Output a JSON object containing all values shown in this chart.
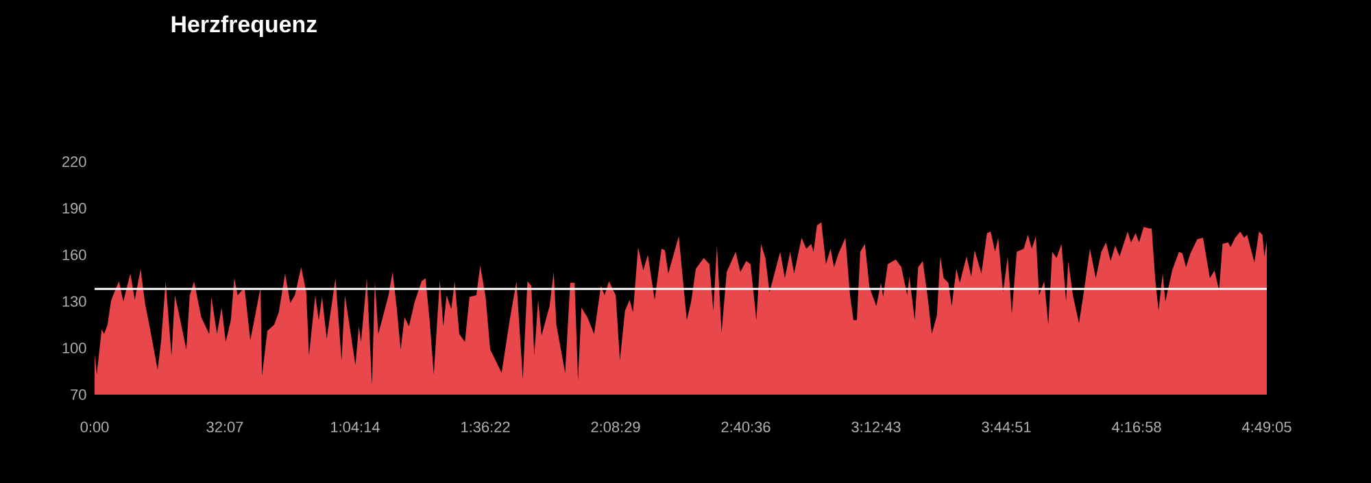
{
  "chart_data": {
    "type": "area",
    "title": "Herzfrequenz",
    "x": [
      0,
      0.54,
      1.74,
      2.34,
      3.18,
      4.02,
      4.56,
      6.0,
      7.08,
      8.82,
      9.9,
      11.34,
      12.48,
      13.56,
      15.54,
      16.38,
      17.52,
      18.96,
      19.8,
      20.64,
      22.62,
      23.46,
      24.54,
      26.28,
      28.26,
      28.8,
      30.18,
      31.32,
      32.34,
      33.6,
      34.44,
      35.28,
      36.96,
      38.4,
      40.92,
      41.28,
      42.6,
      44.28,
      45.42,
      46.98,
      48.24,
      49.38,
      50.94,
      52.2,
      52.86,
      54.42,
      55.26,
      56.1,
      57.24,
      59.4,
      60.9,
      61.74,
      64.32,
      65.16,
      65.7,
      67.14,
      68.4,
      69.12,
      69.96,
      72.48,
      73.5,
      74.46,
      75.48,
      76.44,
      77.52,
      78.96,
      80.64,
      81.6,
      82.62,
      83.64,
      85.14,
      85.98,
      86.82,
      87.96,
      88.8,
      89.94,
      91.32,
      92.46,
      94.14,
      95.1,
      96.42,
      97.56,
      98.7,
      100.38,
      102.36,
      104.04,
      105.6,
      106.74,
      107.7,
      108.42,
      109.38,
      110.22,
      112.2,
      113.22,
      113.88,
      116.04,
      117.3,
      118.38,
      119.22,
      120.06,
      121.5,
      123.18,
      124.86,
      125.76,
      126.84,
      128.52,
      129.54,
      130.8,
      131.94,
      132.78,
      134.04,
      135.3,
      136.44,
      138.12,
      139.8,
      140.64,
      141.48,
      144.06,
      146.04,
      147.12,
      148.26,
      150.24,
      151.62,
      152.58,
      153.48,
      154.62,
      155.88,
      158.1,
      159.24,
      160.68,
      161.76,
      163.2,
      164.34,
      165.42,
      166.44,
      169.08,
      170.22,
      171.54,
      172.5,
      174.36,
      175.5,
      176.7,
      177.3,
      178.14,
      179.22,
      180.36,
      181.5,
      182.34,
      183.48,
      185.16,
      186.3,
      187.14,
      187.98,
      188.82,
      189.96,
      191.1,
      192.78,
      193.92,
      194.46,
      195.6,
      197.58,
      198.96,
      200.4,
      200.94,
      202.26,
      203.1,
      204.24,
      205.44,
      206.46,
      207.72,
      208.56,
      209.4,
      210.54,
      211.38,
      212.52,
      213.36,
      215.04,
      216.18,
      217.02,
      218.7,
      220.08,
      220.98,
      222.06,
      222.84,
      224.04,
      225.18,
      226.2,
      227.4,
      229.14,
      230.16,
      231.12,
      232.14,
      232.92,
      234.18,
      235.2,
      236.16,
      237.24,
      238.44,
      239.58,
      240.12,
      241.26,
      242.76,
      243.78,
      245.46,
      246.9,
      248.28,
      249.42,
      250.56,
      251.7,
      252.78,
      254.76,
      255.6,
      256.74,
      257.58,
      258.72,
      260.1,
      260.7,
      261.54,
      262.38,
      263.4,
      264.06,
      265.74,
      267.42,
      268.26,
      269.16,
      270.24,
      271.92,
      273.36,
      275.04,
      276.18,
      277.32,
      278.16,
      279.54,
      280.14,
      281.28,
      282.54,
      283.5,
      284.22,
      286.02,
      287.16,
      288.0,
      288.48,
      289.08
    ],
    "series": [
      {
        "color": "#e8474b",
        "values": [
          96,
          83,
          112,
          109,
          115,
          130,
          134,
          143,
          130,
          148,
          131,
          151,
          128,
          114,
          86,
          104,
          143,
          95,
          134,
          124,
          99,
          134,
          143,
          120,
          109,
          133,
          109,
          126,
          104,
          118,
          145,
          134,
          139,
          105,
          139,
          82,
          111,
          115,
          123,
          148,
          129,
          134,
          152,
          136,
          95,
          134,
          118,
          133,
          106,
          145,
          92,
          134,
          89,
          114,
          104,
          145,
          76,
          143,
          109,
          134,
          149,
          127,
          99,
          120,
          114,
          130,
          143,
          145,
          118,
          83,
          144,
          114,
          134,
          125,
          143,
          109,
          104,
          133,
          134,
          153,
          133,
          99,
          93,
          84,
          118,
          143,
          80,
          143,
          140,
          95,
          131,
          108,
          127,
          149,
          115,
          84,
          142,
          142,
          79,
          126,
          120,
          109,
          140,
          134,
          143,
          134,
          92,
          124,
          131,
          123,
          165,
          150,
          160,
          131,
          164,
          163,
          148,
          172,
          118,
          130,
          151,
          158,
          154,
          124,
          166,
          110,
          149,
          162,
          149,
          156,
          154,
          118,
          167,
          158,
          136,
          162,
          145,
          162,
          148,
          171,
          164,
          167,
          162,
          179,
          181,
          154,
          164,
          152,
          161,
          171,
          134,
          118,
          118,
          162,
          167,
          139,
          127,
          142,
          133,
          154,
          157,
          152,
          134,
          146,
          118,
          152,
          156,
          133,
          109,
          121,
          159,
          145,
          142,
          127,
          151,
          142,
          159,
          146,
          163,
          148,
          174,
          175,
          162,
          171,
          136,
          159,
          122,
          162,
          164,
          173,
          164,
          172,
          134,
          143,
          115,
          162,
          158,
          167,
          130,
          156,
          134,
          116,
          133,
          164,
          145,
          162,
          168,
          156,
          166,
          159,
          175,
          168,
          174,
          168,
          178,
          177,
          177,
          145,
          124,
          148,
          130,
          150,
          162,
          161,
          152,
          161,
          170,
          171,
          145,
          150,
          137,
          167,
          168,
          165,
          171,
          175,
          171,
          173,
          155,
          175,
          173,
          159,
          169
        ]
      }
    ],
    "xlim": [
      0,
      289.0833
    ],
    "xticks": [
      {
        "value": 0,
        "label": "0:00"
      },
      {
        "value": 32.1167,
        "label": "32:07"
      },
      {
        "value": 64.2333,
        "label": "1:04:14"
      },
      {
        "value": 96.3667,
        "label": "1:36:22"
      },
      {
        "value": 128.4833,
        "label": "2:08:29"
      },
      {
        "value": 160.6,
        "label": "2:40:36"
      },
      {
        "value": 192.7167,
        "label": "3:12:43"
      },
      {
        "value": 224.85,
        "label": "3:44:51"
      },
      {
        "value": 256.9667,
        "label": "4:16:58"
      },
      {
        "value": 289.0833,
        "label": "4:49:05"
      }
    ],
    "ylim": [
      70,
      220
    ],
    "yticks": [
      70,
      100,
      130,
      160,
      190,
      220
    ],
    "ref_lines": [
      {
        "axis": "y",
        "value": 138,
        "color": "#ffffff"
      }
    ]
  }
}
